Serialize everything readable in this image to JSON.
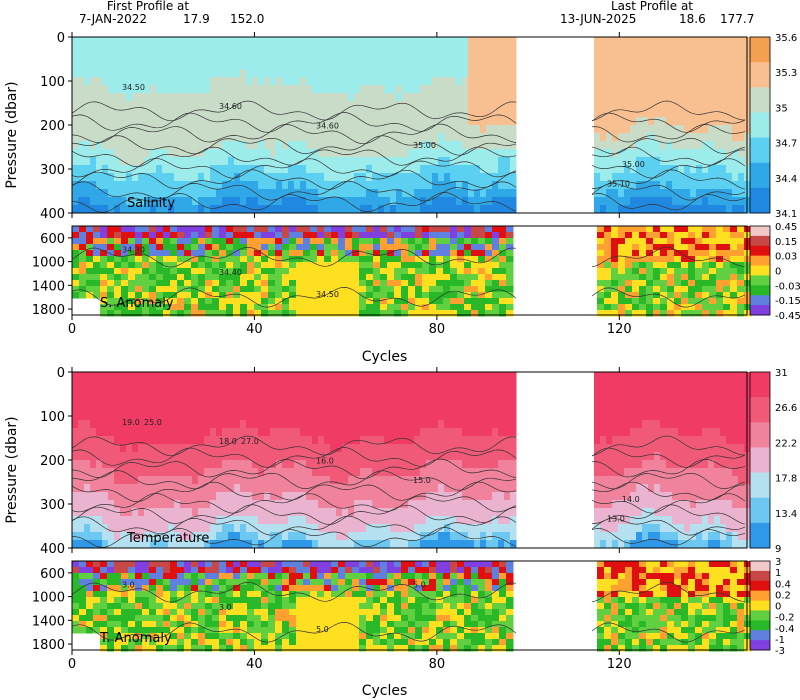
{
  "header": {
    "first_label": "First Profile at",
    "first_date": "7-JAN-2022",
    "first_lat": "17.9",
    "first_lon": "152.0",
    "last_label": "Last Profile at",
    "last_date": "13-JUN-2025",
    "last_lat": "18.6",
    "last_lon": "177.7"
  },
  "chart_data": [
    {
      "type": "heatmap",
      "name": "Salinity",
      "title": "",
      "xlabel": "",
      "ylabel": "Pressure (dbar)",
      "xlim": [
        0,
        148
      ],
      "ylim": [
        400,
        0
      ],
      "xticks": [
        0,
        40,
        80,
        120
      ],
      "yticks": [
        0,
        100,
        200,
        300,
        400
      ],
      "gap_cycles": [
        98,
        114
      ],
      "panel_label": "Salinity",
      "colorbar": {
        "ticks": [
          "35.6",
          "35.3",
          "35",
          "34.7",
          "34.4",
          "34.1"
        ],
        "colors": [
          "#f5a050",
          "#f8c090",
          "#c8dcc8",
          "#9cecec",
          "#5cd0f0",
          "#30a8e8",
          "#2088e0"
        ]
      },
      "contour_labels": [
        "34.50",
        "34.60",
        "34.60",
        "35.00",
        "35.00",
        "35.10"
      ]
    },
    {
      "type": "heatmap",
      "name": "S. Anomaly",
      "title": "",
      "xlabel": "Cycles",
      "ylabel": "",
      "xlim": [
        0,
        148
      ],
      "ylim": [
        1900,
        400
      ],
      "xticks": [
        0,
        40,
        80,
        120
      ],
      "yticks": [
        600,
        1000,
        1400,
        1800
      ],
      "gap_cycles": [
        98,
        114
      ],
      "panel_label": "S. Anomaly",
      "colorbar": {
        "ticks": [
          "0.45",
          "0.15",
          "0.03",
          "0",
          "-0.03",
          "-0.15",
          "-0.45"
        ],
        "colors": [
          "#f0c8c8",
          "#c84848",
          "#e01010",
          "#ffa030",
          "#ffe020",
          "#60d040",
          "#28b828",
          "#6080e0",
          "#8040e0"
        ]
      },
      "contour_labels": [
        "34.30",
        "34.40",
        "34.50"
      ]
    },
    {
      "type": "heatmap",
      "name": "Temperature",
      "title": "",
      "xlabel": "",
      "ylabel": "Pressure (dbar)",
      "xlim": [
        0,
        148
      ],
      "ylim": [
        400,
        0
      ],
      "xticks": [
        0,
        40,
        80,
        120
      ],
      "yticks": [
        0,
        100,
        200,
        300,
        400
      ],
      "gap_cycles": [
        98,
        114
      ],
      "panel_label": "Temperature",
      "colorbar": {
        "ticks": [
          "31",
          "26.6",
          "22.2",
          "17.8",
          "13.4",
          "9"
        ],
        "colors": [
          "#f03c64",
          "#f05a78",
          "#f0829c",
          "#eab4d0",
          "#b4e0f0",
          "#6cc8f0",
          "#3098e8"
        ]
      },
      "contour_labels": [
        "19.0",
        "18.0",
        "16.0",
        "15.0",
        "14.0",
        "13.0",
        "25.0",
        "27.0"
      ]
    },
    {
      "type": "heatmap",
      "name": "T. Anomaly",
      "title": "",
      "xlabel": "Cycles",
      "ylabel": "",
      "xlim": [
        0,
        148
      ],
      "ylim": [
        1900,
        400
      ],
      "xticks": [
        0,
        40,
        80,
        120
      ],
      "yticks": [
        600,
        1000,
        1400,
        1800
      ],
      "gap_cycles": [
        98,
        114
      ],
      "panel_label": "T. Anomaly",
      "colorbar": {
        "ticks": [
          "3",
          "1",
          "0.4",
          "0.2",
          "0",
          "-0.2",
          "-0.4",
          "-1",
          "-3"
        ],
        "colors": [
          "#f0c8c8",
          "#c84848",
          "#e01010",
          "#ffa030",
          "#ffe020",
          "#60d040",
          "#28b828",
          "#6080e0",
          "#8040e0"
        ]
      },
      "contour_labels": [
        "3.0",
        "3.0",
        "5.0",
        "5.0"
      ]
    }
  ]
}
